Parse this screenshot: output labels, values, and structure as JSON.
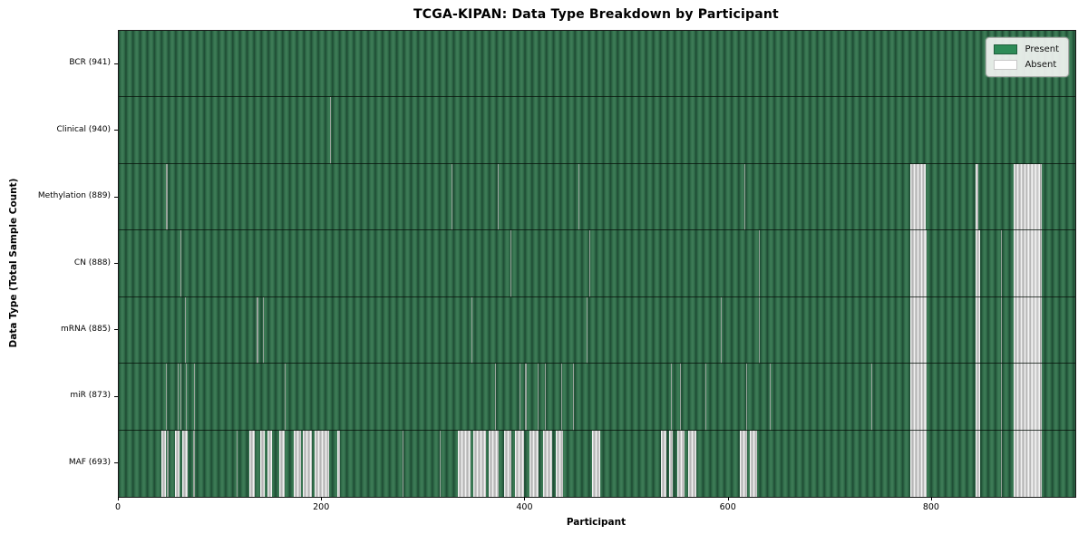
{
  "chart": {
    "title": "TCGA-KIPAN: Data Type Breakdown by Participant",
    "xlabel": "Participant",
    "ylabel": "Data Type (Total Sample Count)"
  },
  "legend": {
    "items": [
      {
        "label": "Present",
        "color": "#2e8b57",
        "border": "#1f5e3b"
      },
      {
        "label": "Absent",
        "color": "#ffffff",
        "border": "#c8c8c8"
      }
    ]
  },
  "chart_data": {
    "type": "heatmap",
    "title": "TCGA-KIPAN: Data Type Breakdown by Participant",
    "xlabel": "Participant",
    "ylabel": "Data Type (Total Sample Count)",
    "x_range": [
      0,
      941
    ],
    "x_ticks": [
      0,
      200,
      400,
      600,
      800
    ],
    "n_participants": 941,
    "legend_position": "upper right",
    "colors": {
      "present": "#2e8b57",
      "absent": "#ffffff"
    },
    "rows": [
      {
        "name": "BCR",
        "label": "BCR (941)",
        "count": 941,
        "absent_ranges": []
      },
      {
        "name": "Clinical",
        "label": "Clinical (940)",
        "count": 940,
        "absent_ranges": [
          [
            208,
            208
          ]
        ]
      },
      {
        "name": "Methylation",
        "label": "Methylation (889)",
        "count": 889,
        "absent_ranges": [
          [
            46,
            47
          ],
          [
            327,
            327
          ],
          [
            373,
            373
          ],
          [
            452,
            452
          ],
          [
            615,
            615
          ],
          [
            779,
            793
          ],
          [
            843,
            845
          ],
          [
            880,
            907
          ]
        ]
      },
      {
        "name": "CN",
        "label": "CN (888)",
        "count": 888,
        "absent_ranges": [
          [
            61,
            61
          ],
          [
            385,
            385
          ],
          [
            463,
            463
          ],
          [
            630,
            630
          ],
          [
            779,
            794
          ],
          [
            843,
            846
          ],
          [
            868,
            868
          ],
          [
            880,
            907
          ]
        ]
      },
      {
        "name": "mRNA",
        "label": "mRNA (885)",
        "count": 885,
        "absent_ranges": [
          [
            65,
            65
          ],
          [
            136,
            136
          ],
          [
            142,
            142
          ],
          [
            347,
            347
          ],
          [
            460,
            460
          ],
          [
            592,
            592
          ],
          [
            630,
            630
          ],
          [
            779,
            794
          ],
          [
            843,
            846
          ],
          [
            868,
            868
          ],
          [
            880,
            907
          ]
        ]
      },
      {
        "name": "miR",
        "label": "miR (873)",
        "count": 873,
        "absent_ranges": [
          [
            46,
            46
          ],
          [
            58,
            58
          ],
          [
            61,
            61
          ],
          [
            66,
            66
          ],
          [
            74,
            74
          ],
          [
            163,
            163
          ],
          [
            370,
            370
          ],
          [
            394,
            394
          ],
          [
            400,
            400
          ],
          [
            412,
            412
          ],
          [
            419,
            419
          ],
          [
            435,
            435
          ],
          [
            447,
            447
          ],
          [
            543,
            543
          ],
          [
            552,
            552
          ],
          [
            577,
            577
          ],
          [
            617,
            617
          ],
          [
            640,
            640
          ],
          [
            740,
            740
          ],
          [
            779,
            794
          ],
          [
            843,
            846
          ],
          [
            868,
            868
          ],
          [
            880,
            907
          ]
        ]
      },
      {
        "name": "MAF",
        "label": "MAF (693)",
        "count": 693,
        "absent_ranges": [
          [
            42,
            45
          ],
          [
            47,
            48
          ],
          [
            55,
            59
          ],
          [
            62,
            67
          ],
          [
            73,
            74
          ],
          [
            116,
            116
          ],
          [
            128,
            133
          ],
          [
            139,
            143
          ],
          [
            146,
            150
          ],
          [
            158,
            162
          ],
          [
            172,
            178
          ],
          [
            181,
            189
          ],
          [
            193,
            206
          ],
          [
            215,
            217
          ],
          [
            279,
            279
          ],
          [
            316,
            316
          ],
          [
            334,
            345
          ],
          [
            349,
            360
          ],
          [
            364,
            373
          ],
          [
            379,
            385
          ],
          [
            390,
            398
          ],
          [
            404,
            412
          ],
          [
            417,
            425
          ],
          [
            430,
            436
          ],
          [
            466,
            473
          ],
          [
            533,
            538
          ],
          [
            541,
            544
          ],
          [
            549,
            556
          ],
          [
            560,
            567
          ],
          [
            611,
            617
          ],
          [
            621,
            627
          ],
          [
            779,
            794
          ],
          [
            843,
            846
          ],
          [
            868,
            868
          ],
          [
            880,
            907
          ]
        ]
      }
    ]
  }
}
